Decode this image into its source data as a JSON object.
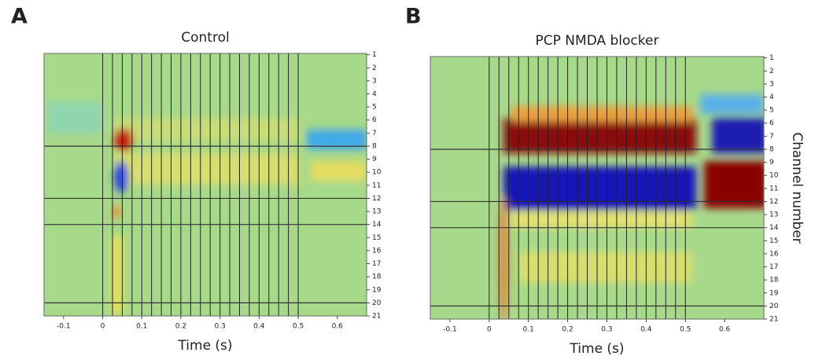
{
  "chart_data": [
    {
      "type": "heatmap",
      "panel_label": "A",
      "title": "Control",
      "xlabel": "Time (s)",
      "xlim": [
        -0.15,
        0.675
      ],
      "xticks": [
        -0.1,
        0,
        0.1,
        0.2,
        0.3,
        0.4,
        0.5,
        0.6
      ],
      "ylim": [
        0.9,
        21
      ],
      "yticks": [
        1,
        2,
        3,
        4,
        5,
        6,
        7,
        8,
        9,
        10,
        11,
        12,
        13,
        14,
        15,
        16,
        17,
        18,
        19,
        20,
        21
      ],
      "stimuli": [
        0,
        0.025,
        0.05,
        0.075,
        0.1,
        0.125,
        0.15,
        0.175,
        0.2,
        0.225,
        0.25,
        0.275,
        0.3,
        0.325,
        0.35,
        0.375,
        0.4,
        0.425,
        0.45,
        0.475,
        0.5
      ],
      "trace_channels": [
        8,
        12,
        14,
        20
      ]
    },
    {
      "type": "heatmap",
      "panel_label": "B",
      "title": "PCP NMDA blocker",
      "xlabel": "Time (s)",
      "ylabel": "Channel number",
      "xlim": [
        -0.15,
        0.7
      ],
      "xticks": [
        -0.1,
        0,
        0.1,
        0.2,
        0.3,
        0.4,
        0.5,
        0.6
      ],
      "ylim": [
        0.9,
        21
      ],
      "yticks": [
        1,
        2,
        3,
        4,
        5,
        6,
        7,
        8,
        9,
        10,
        11,
        12,
        13,
        14,
        15,
        16,
        17,
        18,
        19,
        20,
        21
      ],
      "stimuli": [
        0,
        0.025,
        0.05,
        0.075,
        0.1,
        0.125,
        0.15,
        0.175,
        0.2,
        0.225,
        0.25,
        0.275,
        0.3,
        0.325,
        0.35,
        0.375,
        0.4,
        0.425,
        0.45,
        0.475,
        0.5
      ],
      "trace_channels": [
        8,
        12,
        14,
        20
      ]
    }
  ]
}
